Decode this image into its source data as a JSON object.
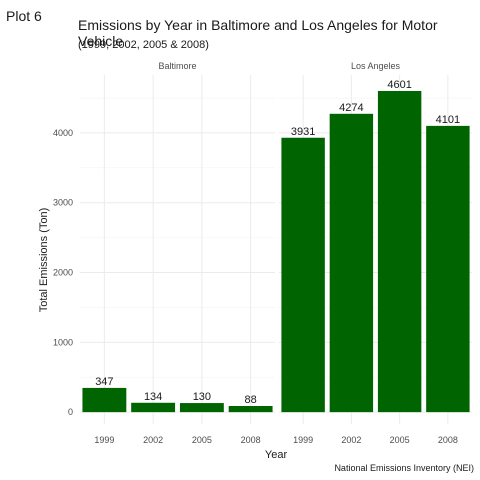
{
  "plot_tag": "Plot 6",
  "chart_data": {
    "type": "bar",
    "title": "Emissions by Year in Baltimore and Los Angeles for Motor Vehicle",
    "subtitle": "(1999, 2002, 2005 & 2008)",
    "xlabel": "Year",
    "ylabel": "Total Emissions (Ton)",
    "caption": "National Emissions Inventory (NEI)",
    "categories": [
      "1999",
      "2002",
      "2005",
      "2008"
    ],
    "facets": [
      {
        "name": "Baltimore",
        "values": [
          347,
          134,
          130,
          88
        ],
        "labels": [
          "347",
          "134",
          "130",
          "88"
        ]
      },
      {
        "name": "Los Angeles",
        "values": [
          3931,
          4274,
          4601,
          4101
        ],
        "labels": [
          "3931",
          "4274",
          "4601",
          "4101"
        ]
      }
    ],
    "yticks": [
      0,
      1000,
      2000,
      3000,
      4000
    ],
    "ylim": [
      -170,
      4830
    ],
    "bar_color": "#006400",
    "grid": true,
    "legend": "none"
  }
}
